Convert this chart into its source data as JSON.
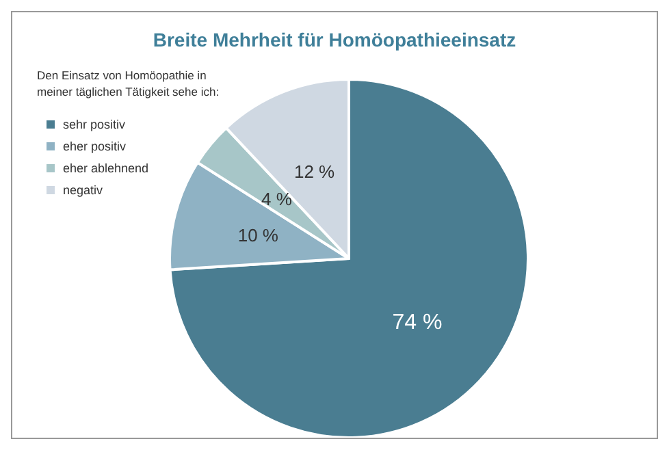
{
  "chart_data": {
    "type": "pie",
    "title": "Breite Mehrheit für Homöopathieeinsatz",
    "legend_title": "Den Einsatz von Homöopathie in\nmeiner täglichen Tätigkeit sehe ich:",
    "categories": [
      "sehr positiv",
      "eher positiv",
      "eher ablehnend",
      "negativ"
    ],
    "values": [
      74,
      10,
      4,
      12
    ],
    "colors": [
      "#4a7d91",
      "#8fb2c4",
      "#a7c6c8",
      "#cfd8e2"
    ],
    "value_labels": [
      "74 %",
      "10 %",
      "4 %",
      "12 %"
    ],
    "legend": "top left"
  }
}
